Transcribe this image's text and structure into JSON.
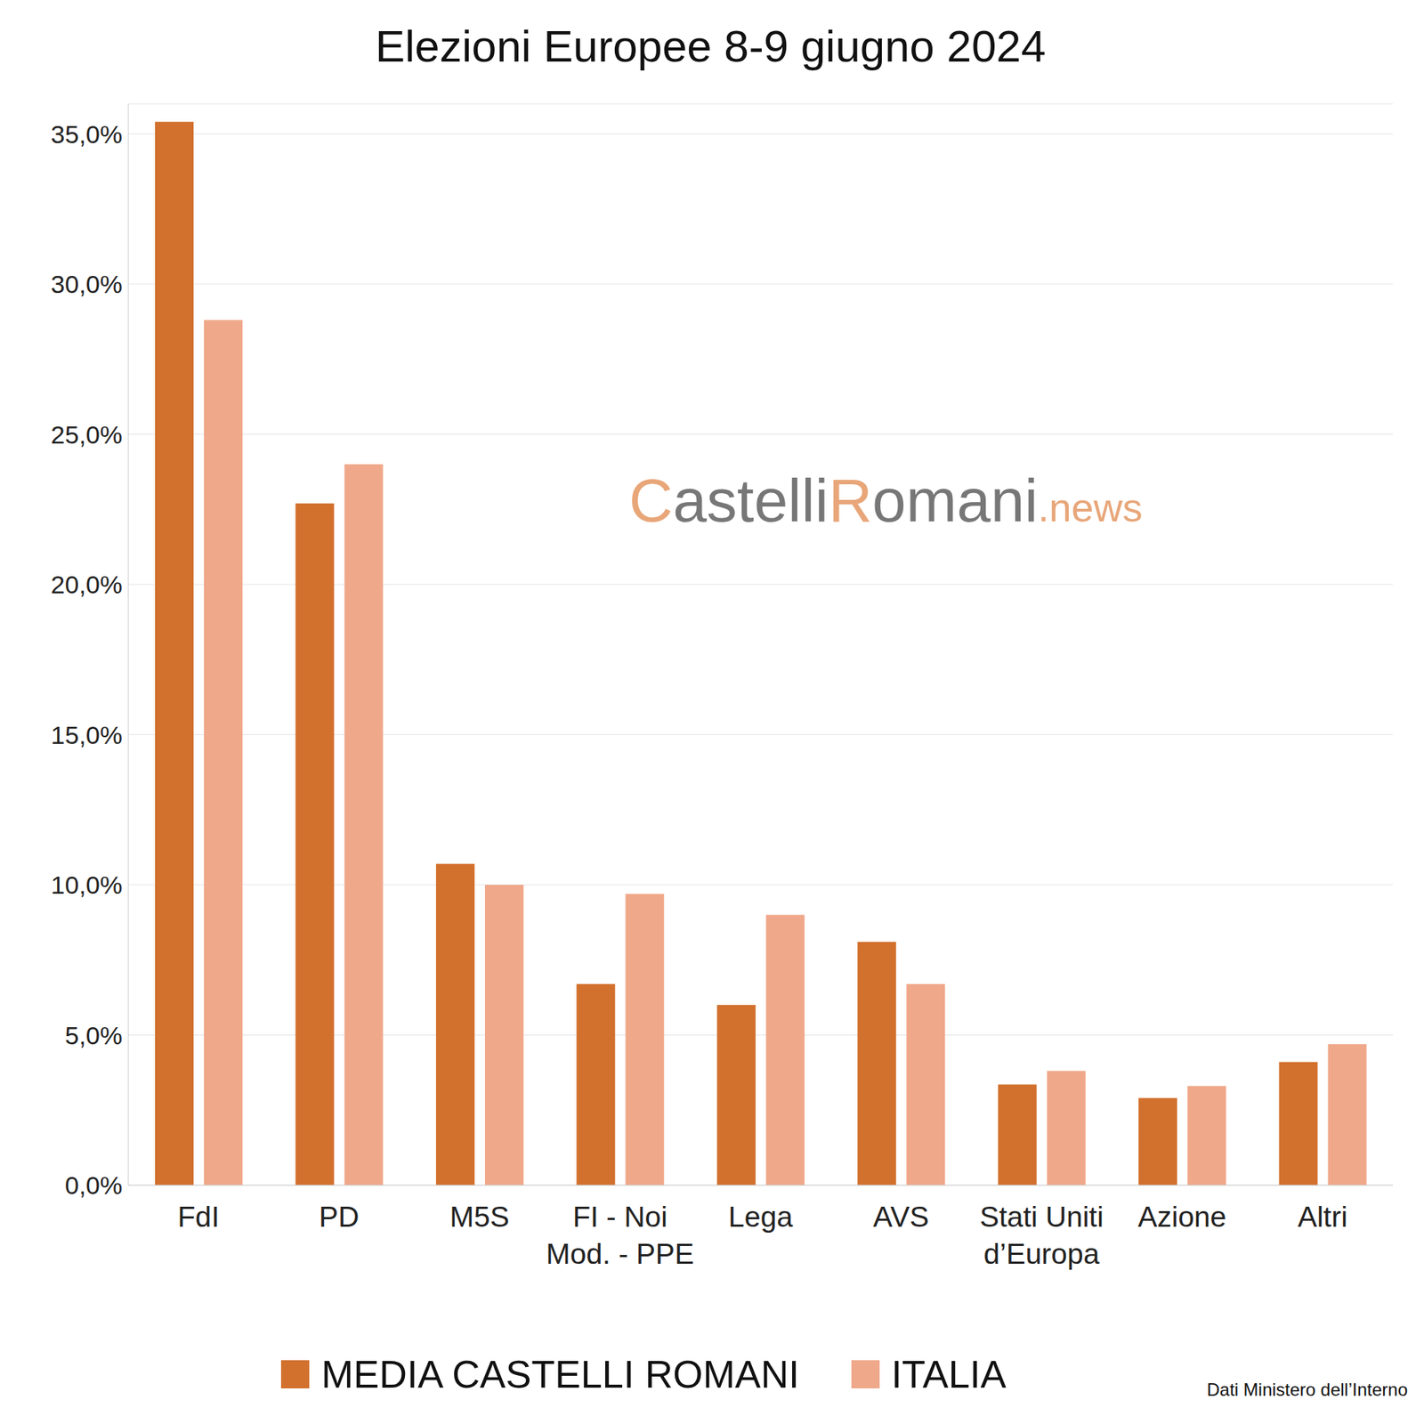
{
  "chart_data": {
    "type": "bar",
    "title": "Elezioni Europee 8-9 giugno 2024",
    "watermark": "CastelliRomani.news",
    "source": "Dati Ministero dell’Interno",
    "categories": [
      "FdI",
      "PD",
      "M5S",
      "FI - Noi Mod. - PPE",
      "Lega",
      "AVS",
      "Stati Uniti d’Europa",
      "Azione",
      "Altri"
    ],
    "series": [
      {
        "name": "MEDIA CASTELLI ROMANI",
        "color": "#D2702D",
        "values": [
          35.4,
          22.7,
          10.7,
          6.7,
          6.0,
          8.1,
          3.35,
          2.9,
          4.1
        ]
      },
      {
        "name": "ITALIA",
        "color": "#F0A88A",
        "values": [
          28.8,
          24.0,
          10.0,
          9.7,
          9.0,
          6.7,
          3.8,
          3.3,
          4.7
        ]
      }
    ],
    "ylim": [
      0,
      36
    ],
    "yticks": [
      {
        "value": 0,
        "label": "0,0%"
      },
      {
        "value": 5,
        "label": "5,0%"
      },
      {
        "value": 10,
        "label": "10,0%"
      },
      {
        "value": 15,
        "label": "15,0%"
      },
      {
        "value": 20,
        "label": "20,0%"
      },
      {
        "value": 25,
        "label": "25,0%"
      },
      {
        "value": 30,
        "label": "30,0%"
      },
      {
        "value": 35,
        "label": "35,0%"
      }
    ],
    "grid": true,
    "legend": "bottom"
  }
}
